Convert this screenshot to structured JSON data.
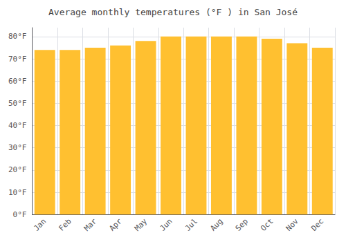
{
  "chart_data": {
    "type": "bar",
    "title": "Average monthly temperatures (°F ) in San José",
    "categories": [
      "Jan",
      "Feb",
      "Mar",
      "Apr",
      "May",
      "Jun",
      "Jul",
      "Aug",
      "Sep",
      "Oct",
      "Nov",
      "Dec"
    ],
    "values": [
      74,
      74,
      75,
      76,
      78,
      80,
      80,
      80,
      80,
      79,
      77,
      75
    ],
    "color": "#FFC030",
    "ylim": [
      0,
      84
    ],
    "yticks": [
      {
        "value": 0,
        "label": "0°F"
      },
      {
        "value": 10,
        "label": "10°F"
      },
      {
        "value": 20,
        "label": "20°F"
      },
      {
        "value": 30,
        "label": "30°F"
      },
      {
        "value": 40,
        "label": "40°F"
      },
      {
        "value": 50,
        "label": "50°F"
      },
      {
        "value": 60,
        "label": "60°F"
      },
      {
        "value": 70,
        "label": "70°F"
      },
      {
        "value": 80,
        "label": "80°F"
      }
    ],
    "grid": true
  }
}
